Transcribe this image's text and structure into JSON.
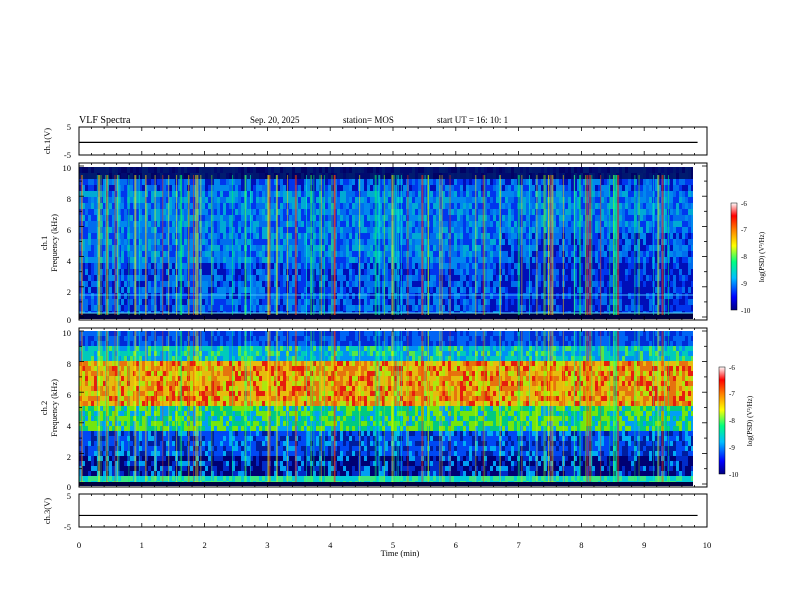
{
  "header": {
    "title": "VLF Spectra",
    "date": "Sep. 20, 2025",
    "station": "station= MOS",
    "start": "start  UT  =   16: 10: 1"
  },
  "colors": {
    "frame": "#000000",
    "background": "#ffffff"
  },
  "chart_data": [
    {
      "type": "line",
      "name": "ch1-voltage",
      "ylabel": "ch.1(V)",
      "ylim": [
        -5,
        5
      ],
      "yticks": [
        "5",
        "-5"
      ],
      "x": [
        0,
        10
      ],
      "y": [
        -0.5,
        -0.5
      ]
    },
    {
      "type": "heatmap",
      "name": "ch1-spectrogram",
      "ylabel_line1": "ch.1",
      "ylabel_line2": "Frequency (kHz)",
      "ylim": [
        0,
        10
      ],
      "yticks": [
        "0",
        "2",
        "4",
        "6",
        "8",
        "10"
      ],
      "xlim": [
        0,
        9.85
      ],
      "colorbar": {
        "label": "log(PSD) (V²/Hz)",
        "range": [
          -10,
          -6
        ],
        "ticks": [
          "-6",
          "-7",
          "-8",
          "-9",
          "-10"
        ],
        "colormap": [
          "#000080",
          "#0000ff",
          "#00bfff",
          "#00ff80",
          "#ffff00",
          "#ff8000",
          "#ff0000",
          "#ffffff"
        ]
      }
    },
    {
      "type": "heatmap",
      "name": "ch2-spectrogram",
      "ylabel_line1": "ch.2",
      "ylabel_line2": "Frequency (kHz)",
      "ylim": [
        0,
        10
      ],
      "yticks": [
        "0",
        "2",
        "4",
        "6",
        "8",
        "10"
      ],
      "xlim": [
        0,
        9.85
      ],
      "colorbar": {
        "label": "log(PSD) (V²/Hz)",
        "range": [
          -10,
          -6
        ],
        "ticks": [
          "-6",
          "-7",
          "-8",
          "-9",
          "-10"
        ],
        "colormap": [
          "#000080",
          "#0000ff",
          "#00bfff",
          "#00ff80",
          "#ffff00",
          "#ff8000",
          "#ff0000",
          "#ffffff"
        ]
      }
    },
    {
      "type": "line",
      "name": "ch3-voltage",
      "ylabel": "ch.3(V)",
      "ylim": [
        -5,
        5
      ],
      "yticks": [
        "5",
        "-5"
      ],
      "x": [
        0,
        10
      ],
      "y": [
        -1.5,
        -1.5
      ]
    }
  ],
  "xaxis": {
    "label": "Time (min)",
    "range": [
      0,
      10
    ],
    "ticks": [
      "0",
      "1",
      "2",
      "3",
      "4",
      "5",
      "6",
      "7",
      "8",
      "9",
      "10"
    ]
  }
}
